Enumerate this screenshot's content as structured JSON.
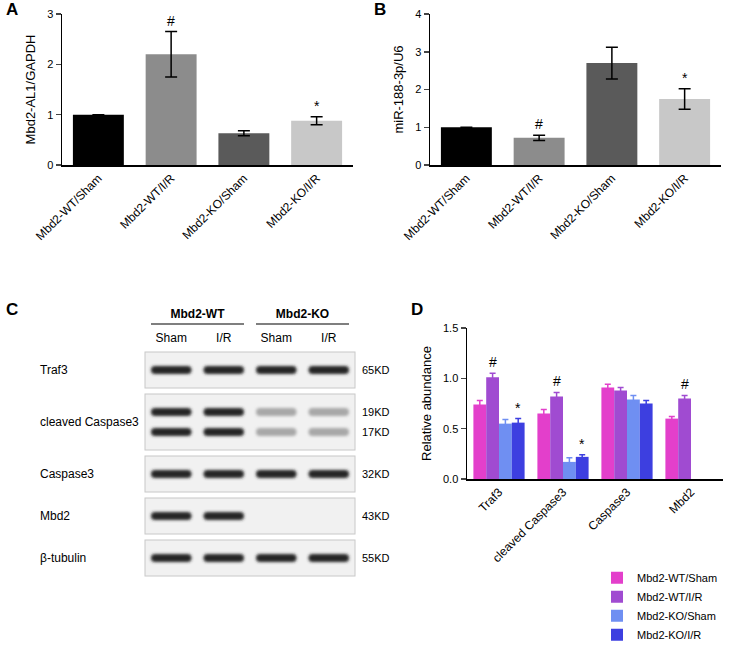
{
  "chart_data": [
    {
      "panel": "A",
      "type": "bar",
      "categories": [
        "Mbd2-WT/Sham",
        "Mbd2-WT/I/R",
        "Mbd2-KO/Sham",
        "Mbd2-KO/I/R"
      ],
      "values": [
        1.0,
        2.2,
        0.63,
        0.88
      ],
      "errors": [
        null,
        0.45,
        0.05,
        0.08
      ],
      "colors": [
        "#000000",
        "#8c8c8c",
        "#5a5a5a",
        "#c8c8c8"
      ],
      "y_label": "Mbd2-AL1/GAPDH",
      "ylim": [
        0,
        3
      ],
      "yticks": [
        0,
        1,
        2,
        3
      ],
      "markers": [
        {
          "text": "#",
          "category": "Mbd2-WT/I/R"
        },
        {
          "text": "*",
          "category": "Mbd2-KO/I/R"
        }
      ]
    },
    {
      "panel": "B",
      "type": "bar",
      "categories": [
        "Mbd2-WT/Sham",
        "Mbd2-WT/I/R",
        "Mbd2-KO/Sham",
        "Mbd2-KO/I/R"
      ],
      "values": [
        1.0,
        0.72,
        2.7,
        1.75
      ],
      "errors": [
        null,
        0.07,
        0.42,
        0.27
      ],
      "colors": [
        "#000000",
        "#8c8c8c",
        "#5a5a5a",
        "#c8c8c8"
      ],
      "y_label": "miR-188-3p/U6",
      "ylim": [
        0,
        4
      ],
      "yticks": [
        0,
        1,
        2,
        3,
        4
      ],
      "markers": [
        {
          "text": "#",
          "category": "Mbd2-WT/I/R"
        },
        {
          "text": "*",
          "category": "Mbd2-KO/I/R"
        }
      ]
    },
    {
      "panel": "D",
      "type": "bar",
      "categories": [
        "Traf3",
        "cleaved Caspase3",
        "Caspase3",
        "Mbd2"
      ],
      "series": [
        {
          "name": "Mbd2-WT/Sham",
          "color": "#e33fcb",
          "values": [
            0.74,
            0.65,
            0.91,
            0.6
          ],
          "errors": [
            0.04,
            0.04,
            0.03,
            0.02
          ]
        },
        {
          "name": "Mbd2-WT/I/R",
          "color": "#a04bd1",
          "values": [
            1.01,
            0.82,
            0.88,
            0.8
          ],
          "errors": [
            0.04,
            0.04,
            0.03,
            0.03
          ]
        },
        {
          "name": "Mbd2-KO/Sham",
          "color": "#6f8ff2",
          "values": [
            0.55,
            0.17,
            0.79,
            null
          ],
          "errors": [
            0.04,
            0.04,
            0.04,
            null
          ]
        },
        {
          "name": "Mbd2-KO/I/R",
          "color": "#3d3fe0",
          "values": [
            0.56,
            0.22,
            0.75,
            null
          ],
          "errors": [
            0.04,
            0.02,
            0.03,
            null
          ]
        }
      ],
      "y_label": "Relative abundance",
      "ylim": [
        0,
        1.5
      ],
      "yticks": [
        {
          "value": 0,
          "label": "0.0"
        },
        {
          "value": 0.5,
          "label": "0.5"
        },
        {
          "value": 1,
          "label": "1.0"
        },
        {
          "value": 1.5,
          "label": "1.5"
        }
      ],
      "legend": "bottom right",
      "markers": [
        {
          "text": "#",
          "category": "Traf3",
          "series": "Mbd2-WT/I/R"
        },
        {
          "text": "*",
          "category": "Traf3",
          "series": "Mbd2-KO/I/R"
        },
        {
          "text": "#",
          "category": "cleaved Caspase3",
          "series": "Mbd2-WT/I/R"
        },
        {
          "text": "*",
          "category": "cleaved Caspase3",
          "series": "Mbd2-KO/I/R"
        },
        {
          "text": "#",
          "category": "Mbd2",
          "series": "Mbd2-WT/I/R"
        }
      ]
    }
  ],
  "blot": {
    "panel": "C",
    "groups": [
      {
        "label": "Mbd2-WT",
        "lanes": [
          "Sham",
          "I/R"
        ]
      },
      {
        "label": "Mbd2-KO",
        "lanes": [
          "Sham",
          "I/R"
        ]
      }
    ],
    "rows": [
      {
        "protein": "Traf3",
        "sizes": [
          "65KD"
        ]
      },
      {
        "protein": "cleaved Caspase3",
        "sizes": [
          "19KD",
          "17KD"
        ]
      },
      {
        "protein": "Caspase3",
        "sizes": [
          "32KD"
        ]
      },
      {
        "protein": "Mbd2",
        "sizes": [
          "43KD"
        ],
        "bands_in": [
          "Mbd2-WT"
        ]
      },
      {
        "protein": "β-tubulin",
        "sizes": [
          "55KD"
        ]
      }
    ]
  }
}
